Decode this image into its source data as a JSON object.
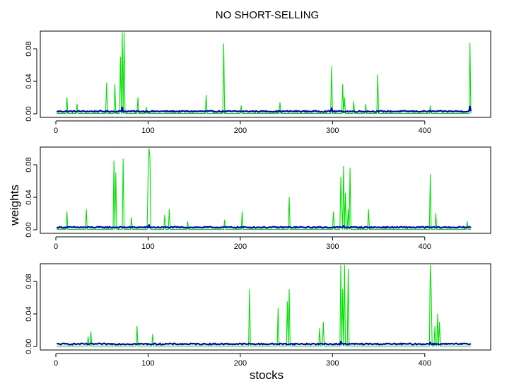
{
  "figure": {
    "title": "NO SHORT-SELLING",
    "xlabel": "stocks",
    "ylabel": "weights"
  },
  "colors": {
    "series_green": "#00e000",
    "series_blue": "#0000cc",
    "axes": "#000000",
    "background": "#ffffff"
  },
  "chart_data": [
    {
      "type": "line",
      "x_range": [
        1,
        450
      ],
      "xlim": [
        0,
        450
      ],
      "ylim": [
        0,
        0.1
      ],
      "x_ticks": [
        0,
        100,
        200,
        300,
        400
      ],
      "y_ticks": [
        0.0,
        0.04,
        0.08
      ],
      "x_tick_labels": [
        "0",
        "100",
        "200",
        "300",
        "400"
      ],
      "y_tick_labels": [
        "0.00",
        "0.04",
        "0.08"
      ],
      "blue_baseline": 0.003,
      "series": [
        {
          "color": "green",
          "spikes": [
            [
              12,
              0.02
            ],
            [
              23,
              0.012
            ],
            [
              55,
              0.038
            ],
            [
              64,
              0.036
            ],
            [
              70,
              0.07
            ],
            [
              72,
              0.1
            ],
            [
              74,
              0.1
            ],
            [
              89,
              0.02
            ],
            [
              98,
              0.008
            ],
            [
              163,
              0.023
            ],
            [
              182,
              0.086
            ],
            [
              201,
              0.01
            ],
            [
              243,
              0.014
            ],
            [
              299,
              0.058
            ],
            [
              311,
              0.036
            ],
            [
              313,
              0.02
            ],
            [
              323,
              0.015
            ],
            [
              336,
              0.012
            ],
            [
              349,
              0.048
            ],
            [
              406,
              0.01
            ],
            [
              449,
              0.087
            ]
          ]
        },
        {
          "color": "blue",
          "spikes": [
            [
              72,
              0.008
            ],
            [
              299,
              0.007
            ],
            [
              449,
              0.009
            ]
          ]
        }
      ]
    },
    {
      "type": "line",
      "x_range": [
        1,
        450
      ],
      "xlim": [
        0,
        450
      ],
      "ylim": [
        0,
        0.1
      ],
      "x_ticks": [
        0,
        100,
        200,
        300,
        400
      ],
      "y_ticks": [
        0.0,
        0.04,
        0.08
      ],
      "x_tick_labels": [
        "0",
        "100",
        "200",
        "300",
        "400"
      ],
      "y_tick_labels": [
        "0.00",
        "0.04",
        "0.08"
      ],
      "blue_baseline": 0.003,
      "series": [
        {
          "color": "green",
          "spikes": [
            [
              12,
              0.022
            ],
            [
              33,
              0.025
            ],
            [
              63,
              0.085
            ],
            [
              65,
              0.07
            ],
            [
              73,
              0.087
            ],
            [
              82,
              0.015
            ],
            [
              100,
              0.065
            ],
            [
              101,
              0.1
            ],
            [
              102,
              0.09
            ],
            [
              118,
              0.018
            ],
            [
              123,
              0.025
            ],
            [
              143,
              0.01
            ],
            [
              183,
              0.012
            ],
            [
              202,
              0.022
            ],
            [
              253,
              0.04
            ],
            [
              301,
              0.022
            ],
            [
              309,
              0.065
            ],
            [
              310,
              0.03
            ],
            [
              312,
              0.078
            ],
            [
              314,
              0.045
            ],
            [
              317,
              0.025
            ],
            [
              319,
              0.076
            ],
            [
              339,
              0.025
            ],
            [
              406,
              0.068
            ],
            [
              412,
              0.02
            ],
            [
              446,
              0.01
            ]
          ]
        },
        {
          "color": "blue",
          "spikes": [
            [
              101,
              0.006
            ],
            [
              312,
              0.005
            ]
          ]
        }
      ]
    },
    {
      "type": "line",
      "x_range": [
        1,
        450
      ],
      "xlim": [
        0,
        450
      ],
      "ylim": [
        0,
        0.1
      ],
      "x_ticks": [
        0,
        100,
        200,
        300,
        400
      ],
      "y_ticks": [
        0.0,
        0.04,
        0.08
      ],
      "x_tick_labels": [
        "0",
        "100",
        "200",
        "300",
        "400"
      ],
      "y_tick_labels": [
        "0.00",
        "0.04",
        "0.08"
      ],
      "blue_baseline": 0.003,
      "series": [
        {
          "color": "green",
          "spikes": [
            [
              35,
              0.012
            ],
            [
              38,
              0.018
            ],
            [
              88,
              0.025
            ],
            [
              105,
              0.015
            ],
            [
              210,
              0.07
            ],
            [
              241,
              0.047
            ],
            [
              251,
              0.055
            ],
            [
              253,
              0.07
            ],
            [
              286,
              0.022
            ],
            [
              290,
              0.03
            ],
            [
              309,
              0.1
            ],
            [
              311,
              0.07
            ],
            [
              313,
              0.1
            ],
            [
              317,
              0.095
            ],
            [
              406,
              0.1
            ],
            [
              407,
              0.068
            ],
            [
              411,
              0.025
            ],
            [
              414,
              0.04
            ],
            [
              416,
              0.03
            ]
          ]
        },
        {
          "color": "blue",
          "spikes": [
            [
              309,
              0.006
            ],
            [
              406,
              0.005
            ]
          ]
        }
      ]
    }
  ]
}
